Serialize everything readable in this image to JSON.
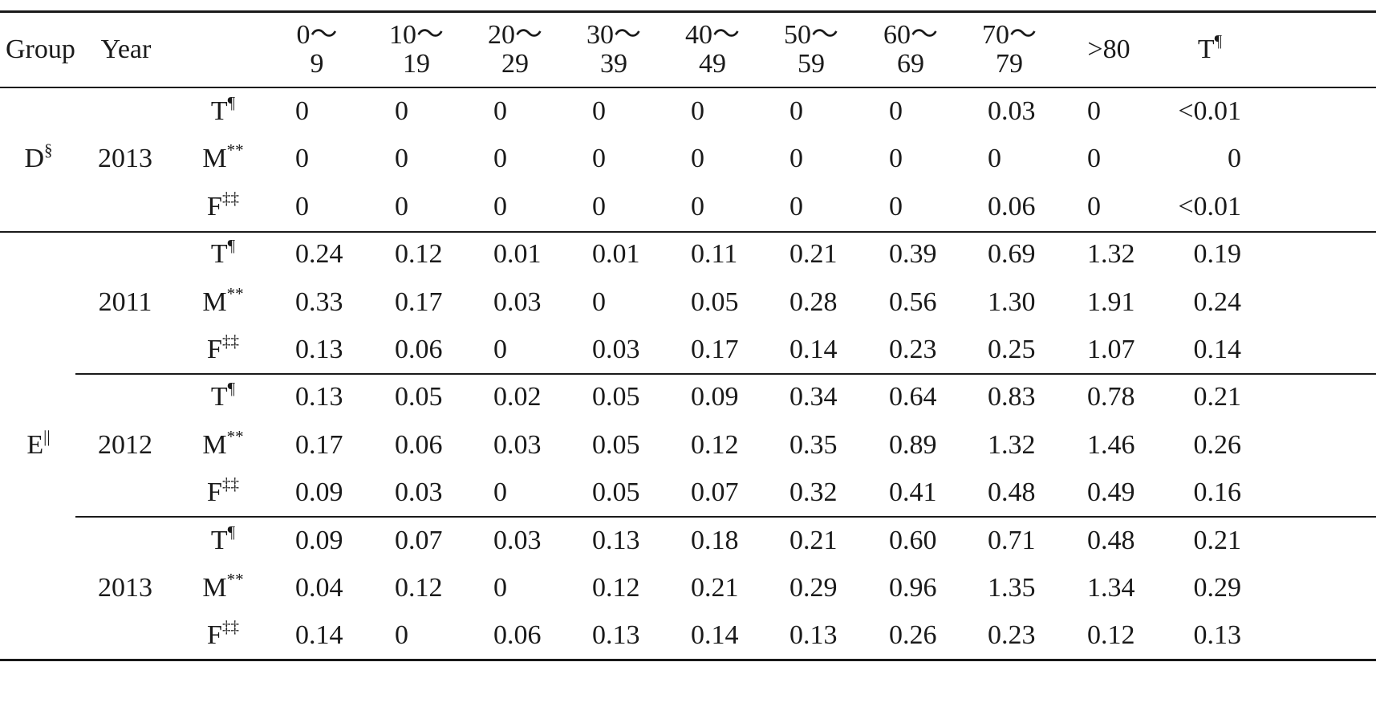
{
  "table": {
    "header": {
      "group": "Group",
      "year": "Year",
      "age_groups": [
        [
          "0～",
          "9"
        ],
        [
          "10～",
          "19"
        ],
        [
          "20～",
          "29"
        ],
        [
          "30～",
          "39"
        ],
        [
          "40～",
          "49"
        ],
        [
          "50～",
          "59"
        ],
        [
          "60～",
          "69"
        ],
        [
          "70～",
          "79"
        ],
        [
          ">80"
        ]
      ],
      "total": {
        "base": "T",
        "sup": "¶"
      }
    },
    "groups": [
      {
        "label": {
          "base": "D",
          "sup": "§"
        },
        "years": [
          {
            "year": "2013",
            "rows": [
              {
                "sex": {
                  "base": "T",
                  "sup": "¶"
                },
                "values": [
                  "0",
                  "0",
                  "0",
                  "0",
                  "0",
                  "0",
                  "0",
                  "0.03",
                  "0",
                  "<0.01"
                ]
              },
              {
                "sex": {
                  "base": "M",
                  "sup": "**"
                },
                "values": [
                  "0",
                  "0",
                  "0",
                  "0",
                  "0",
                  "0",
                  "0",
                  "0",
                  "0",
                  "0"
                ]
              },
              {
                "sex": {
                  "base": "F",
                  "sup": "‡‡"
                },
                "values": [
                  "0",
                  "0",
                  "0",
                  "0",
                  "0",
                  "0",
                  "0",
                  "0.06",
                  "0",
                  "<0.01"
                ]
              }
            ]
          }
        ]
      },
      {
        "label": {
          "base": "E",
          "sup": "||"
        },
        "years": [
          {
            "year": "2011",
            "rows": [
              {
                "sex": {
                  "base": "T",
                  "sup": "¶"
                },
                "values": [
                  "0.24",
                  "0.12",
                  "0.01",
                  "0.01",
                  "0.11",
                  "0.21",
                  "0.39",
                  "0.69",
                  "1.32",
                  "0.19"
                ]
              },
              {
                "sex": {
                  "base": "M",
                  "sup": "**"
                },
                "values": [
                  "0.33",
                  "0.17",
                  "0.03",
                  "0",
                  "0.05",
                  "0.28",
                  "0.56",
                  "1.30",
                  "1.91",
                  "0.24"
                ]
              },
              {
                "sex": {
                  "base": "F",
                  "sup": "‡‡"
                },
                "values": [
                  "0.13",
                  "0.06",
                  "0",
                  "0.03",
                  "0.17",
                  "0.14",
                  "0.23",
                  "0.25",
                  "1.07",
                  "0.14"
                ]
              }
            ]
          },
          {
            "year": "2012",
            "rows": [
              {
                "sex": {
                  "base": "T",
                  "sup": "¶"
                },
                "values": [
                  "0.13",
                  "0.05",
                  "0.02",
                  "0.05",
                  "0.09",
                  "0.34",
                  "0.64",
                  "0.83",
                  "0.78",
                  "0.21"
                ]
              },
              {
                "sex": {
                  "base": "M",
                  "sup": "**"
                },
                "values": [
                  "0.17",
                  "0.06",
                  "0.03",
                  "0.05",
                  "0.12",
                  "0.35",
                  "0.89",
                  "1.32",
                  "1.46",
                  "0.26"
                ]
              },
              {
                "sex": {
                  "base": "F",
                  "sup": "‡‡"
                },
                "values": [
                  "0.09",
                  "0.03",
                  "0",
                  "0.05",
                  "0.07",
                  "0.32",
                  "0.41",
                  "0.48",
                  "0.49",
                  "0.16"
                ]
              }
            ]
          },
          {
            "year": "2013",
            "rows": [
              {
                "sex": {
                  "base": "T",
                  "sup": "¶"
                },
                "values": [
                  "0.09",
                  "0.07",
                  "0.03",
                  "0.13",
                  "0.18",
                  "0.21",
                  "0.60",
                  "0.71",
                  "0.48",
                  "0.21"
                ]
              },
              {
                "sex": {
                  "base": "M",
                  "sup": "**"
                },
                "values": [
                  "0.04",
                  "0.12",
                  "0",
                  "0.12",
                  "0.21",
                  "0.29",
                  "0.96",
                  "1.35",
                  "1.34",
                  "0.29"
                ]
              },
              {
                "sex": {
                  "base": "F",
                  "sup": "‡‡"
                },
                "values": [
                  "0.14",
                  "0",
                  "0.06",
                  "0.13",
                  "0.14",
                  "0.13",
                  "0.26",
                  "0.23",
                  "0.12",
                  "0.13"
                ]
              }
            ]
          }
        ]
      }
    ]
  }
}
